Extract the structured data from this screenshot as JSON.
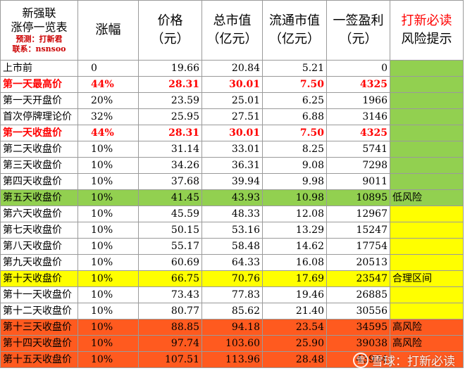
{
  "header": {
    "title_line1": "新强联",
    "title_line2": "涨停一览表",
    "predict": "预测：打新君",
    "contact": "联系：nsnsoo",
    "col_change": "涨幅",
    "col_price_1": "价格",
    "col_price_2": "（元）",
    "col_total_cap_1": "总市值",
    "col_total_cap_2": "（亿元）",
    "col_float_cap_1": "流通市值",
    "col_float_cap_2": "（亿元）",
    "col_profit": "一签盈利",
    "col_profit_unit": "（元）",
    "col_risk_1": "打新必读",
    "col_risk_2": "风险提示"
  },
  "colors": {
    "green": "#92d050",
    "yellow": "#ffff00",
    "orange": "#ff5a1f",
    "red_text": "#ff0000"
  },
  "rows": [
    {
      "name": "上市前",
      "change": "0",
      "price": "19.66",
      "total_cap": "20.84",
      "float_cap": "5.21",
      "profit": "0",
      "risk": "",
      "style": "normal",
      "risk_color": "green"
    },
    {
      "name": "第一天最高价",
      "change": "44%",
      "price": "28.31",
      "total_cap": "30.01",
      "float_cap": "7.50",
      "profit": "4325",
      "risk": "",
      "style": "red",
      "risk_color": "green"
    },
    {
      "name": "第一天开盘价",
      "change": "20%",
      "price": "23.59",
      "total_cap": "25.01",
      "float_cap": "6.25",
      "profit": "1966",
      "risk": "",
      "style": "normal",
      "risk_color": "green"
    },
    {
      "name": "首次停牌理论价",
      "change": "32%",
      "price": "25.95",
      "total_cap": "27.51",
      "float_cap": "6.88",
      "profit": "3146",
      "risk": "",
      "style": "normal",
      "risk_color": "green"
    },
    {
      "name": "第一天收盘价",
      "change": "44%",
      "price": "28.31",
      "total_cap": "30.01",
      "float_cap": "7.50",
      "profit": "4325",
      "risk": "",
      "style": "red",
      "risk_color": "green"
    },
    {
      "name": "第二天收盘价",
      "change": "10%",
      "price": "31.14",
      "total_cap": "33.01",
      "float_cap": "8.25",
      "profit": "5741",
      "risk": "",
      "style": "normal",
      "risk_color": "green"
    },
    {
      "name": "第三天收盘价",
      "change": "10%",
      "price": "34.26",
      "total_cap": "36.31",
      "float_cap": "9.08",
      "profit": "7298",
      "risk": "",
      "style": "normal",
      "risk_color": "green"
    },
    {
      "name": "第四天收盘价",
      "change": "10%",
      "price": "37.68",
      "total_cap": "39.94",
      "float_cap": "9.98",
      "profit": "9011",
      "risk": "",
      "style": "normal",
      "risk_color": "green"
    },
    {
      "name": "第五天收盘价",
      "change": "10%",
      "price": "41.45",
      "total_cap": "43.93",
      "float_cap": "10.98",
      "profit": "10895",
      "risk": "低风险",
      "style": "row-green",
      "risk_color": "none"
    },
    {
      "name": "第六天收盘价",
      "change": "10%",
      "price": "45.59",
      "total_cap": "48.33",
      "float_cap": "12.08",
      "profit": "12967",
      "risk": "",
      "style": "normal",
      "risk_color": "yellow"
    },
    {
      "name": "第七天收盘价",
      "change": "10%",
      "price": "50.15",
      "total_cap": "53.16",
      "float_cap": "13.29",
      "profit": "15247",
      "risk": "",
      "style": "normal",
      "risk_color": "yellow"
    },
    {
      "name": "第八天收盘价",
      "change": "10%",
      "price": "55.17",
      "total_cap": "58.48",
      "float_cap": "14.62",
      "profit": "17754",
      "risk": "",
      "style": "normal",
      "risk_color": "yellow"
    },
    {
      "name": "第九天收盘价",
      "change": "10%",
      "price": "60.69",
      "total_cap": "64.33",
      "float_cap": "16.08",
      "profit": "20513",
      "risk": "",
      "style": "normal",
      "risk_color": "yellow"
    },
    {
      "name": "第十天收盘价",
      "change": "10%",
      "price": "66.75",
      "total_cap": "70.76",
      "float_cap": "17.69",
      "profit": "23547",
      "risk": "合理区间",
      "style": "row-yellow",
      "risk_color": "none"
    },
    {
      "name": "第十一天收盘价",
      "change": "10%",
      "price": "73.43",
      "total_cap": "77.83",
      "float_cap": "19.46",
      "profit": "26885",
      "risk": "",
      "style": "normal",
      "risk_color": "yellow"
    },
    {
      "name": "第十二天收盘价",
      "change": "10%",
      "price": "80.77",
      "total_cap": "85.62",
      "float_cap": "21.40",
      "profit": "30556",
      "risk": "",
      "style": "normal",
      "risk_color": "yellow"
    },
    {
      "name": "第十三天收盘价",
      "change": "10%",
      "price": "88.85",
      "total_cap": "94.18",
      "float_cap": "23.54",
      "profit": "34595",
      "risk": "高风险",
      "style": "row-orange",
      "risk_color": "none"
    },
    {
      "name": "第十四天收盘价",
      "change": "10%",
      "price": "97.74",
      "total_cap": "103.60",
      "float_cap": "25.90",
      "profit": "39038",
      "risk": "高风险",
      "style": "row-orange",
      "risk_color": "none"
    },
    {
      "name": "第十五天收盘价",
      "change": "10%",
      "price": "107.51",
      "total_cap": "113.96",
      "float_cap": "28.48",
      "profit": "43924",
      "risk": "",
      "style": "row-orange",
      "risk_color": "none"
    }
  ],
  "watermark": {
    "logo_text": "雪",
    "text": "雪球：打新必读"
  }
}
